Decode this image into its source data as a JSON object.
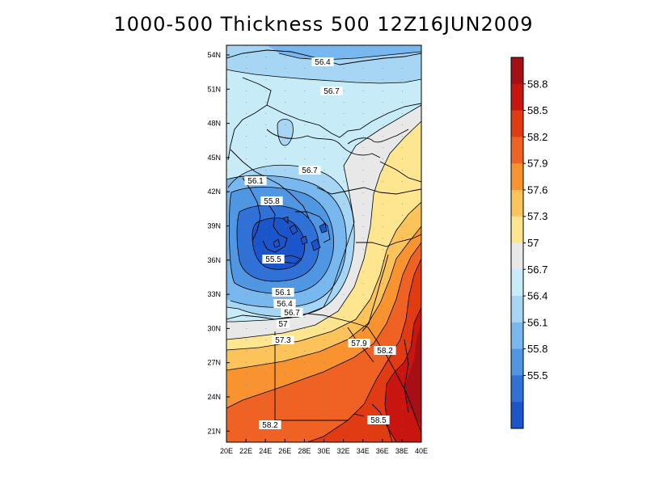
{
  "title": "1000-500 Thickness 500 12Z16JUN2009",
  "map": {
    "lat_ticks": [
      "54N",
      "51N",
      "48N",
      "45N",
      "42N",
      "39N",
      "36N",
      "33N",
      "30N",
      "27N",
      "24N",
      "21N"
    ],
    "lon_ticks": [
      "20E",
      "22E",
      "24E",
      "26E",
      "28E",
      "30E",
      "32E",
      "34E",
      "36E",
      "38E",
      "40E"
    ],
    "lat_range": [
      20,
      55
    ],
    "lon_range": [
      20,
      40
    ],
    "cyclone_center": {
      "lon": 26.5,
      "lat": 37.5
    },
    "contour_labels": [
      "56.4",
      "56.7",
      "56.7",
      "56.1",
      "55.8",
      "55.5",
      "56.1",
      "56.4",
      "56.7",
      "57",
      "57.3",
      "57.9",
      "58.2",
      "58.2",
      "58.5"
    ]
  },
  "colorbar": {
    "levels": [
      "58.8",
      "58.5",
      "58.2",
      "57.9",
      "57.6",
      "57.3",
      "57",
      "56.7",
      "56.4",
      "56.1",
      "55.8",
      "55.5"
    ],
    "colors": [
      "#a50f15",
      "#c8150f",
      "#e13b13",
      "#f06223",
      "#f9932f",
      "#fbc35a",
      "#fde68f",
      "#e8e8e8",
      "#c7ecf8",
      "#a6d6f4",
      "#79b8ee",
      "#4f96e3",
      "#2f71d6",
      "#1a55cc"
    ]
  }
}
